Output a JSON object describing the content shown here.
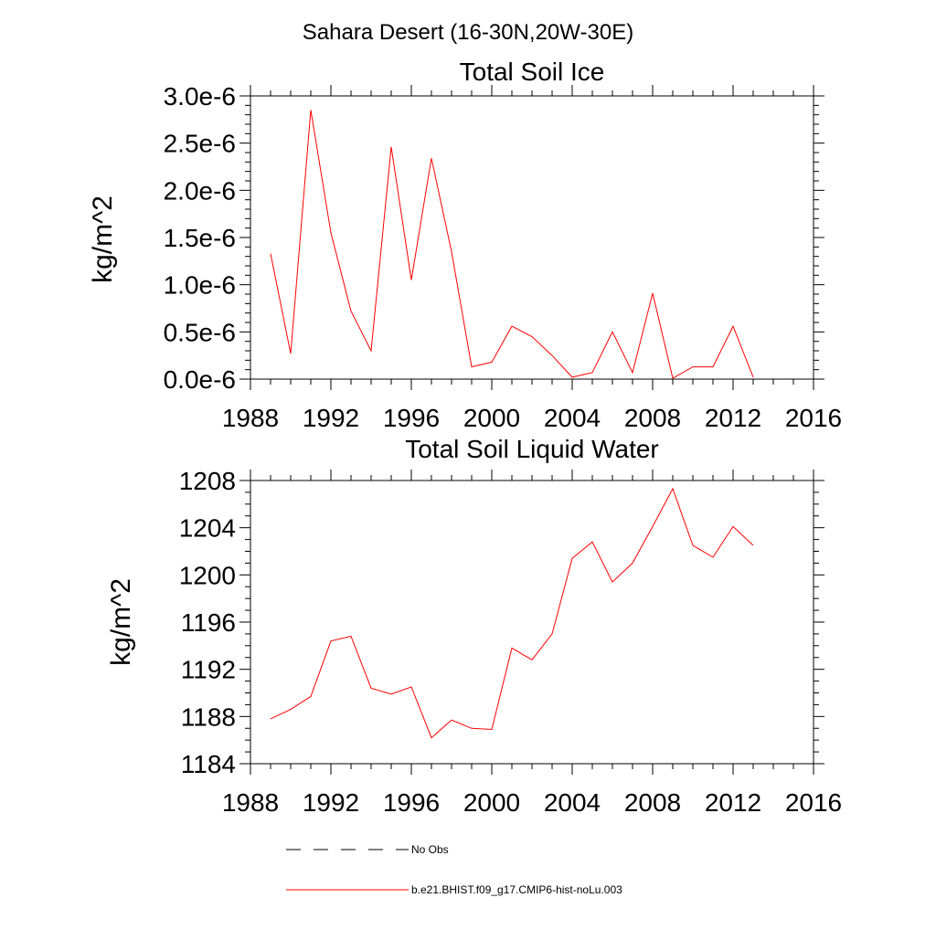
{
  "page_title": "Sahara Desert (16-30N,20W-30E)",
  "chart_data": [
    {
      "type": "line",
      "title": "Total Soil Ice",
      "xlabel": "",
      "ylabel": "kg/m^2",
      "xlim": [
        1988,
        2016
      ],
      "ylim": [
        0,
        3e-06
      ],
      "x_ticks": [
        1988,
        1992,
        1996,
        2000,
        2004,
        2008,
        2012,
        2016
      ],
      "x_tick_labels": [
        "1988",
        "1992",
        "1996",
        "2000",
        "2004",
        "2008",
        "2012",
        "2016"
      ],
      "y_ticks": [
        0,
        5e-07,
        1e-06,
        1.5e-06,
        2e-06,
        2.5e-06,
        3e-06
      ],
      "y_tick_labels": [
        "0.0e-6",
        "0.5e-6",
        "1.0e-6",
        "1.5e-6",
        "2.0e-6",
        "2.5e-6",
        "3.0e-6"
      ],
      "grid": false,
      "series": [
        {
          "name": "b.e21.BHIST.f09_g17.CMIP6-hist-noLu.003",
          "color": "#ff0000",
          "x": [
            1989,
            1990,
            1991,
            1992,
            1993,
            1994,
            1995,
            1996,
            1997,
            1998,
            1999,
            2000,
            2001,
            2002,
            2003,
            2004,
            2005,
            2006,
            2007,
            2008,
            2009,
            2010,
            2011,
            2012,
            2013
          ],
          "values": [
            1.33e-06,
            2.7e-07,
            2.85e-06,
            1.55e-06,
            7.2e-07,
            3e-07,
            2.46e-06,
            1.05e-06,
            2.34e-06,
            1.35e-06,
            1.3e-07,
            1.8e-07,
            5.6e-07,
            4.5e-07,
            2.5e-07,
            2e-08,
            7e-08,
            5e-07,
            7e-08,
            9.1e-07,
            1e-08,
            1.3e-07,
            1.3e-07,
            5.6e-07,
            2e-08
          ]
        }
      ]
    },
    {
      "type": "line",
      "title": "Total Soil Liquid Water",
      "xlabel": "",
      "ylabel": "kg/m^2",
      "xlim": [
        1988,
        2016
      ],
      "ylim": [
        1184,
        1208
      ],
      "x_ticks": [
        1988,
        1992,
        1996,
        2000,
        2004,
        2008,
        2012,
        2016
      ],
      "x_tick_labels": [
        "1988",
        "1992",
        "1996",
        "2000",
        "2004",
        "2008",
        "2012",
        "2016"
      ],
      "y_ticks": [
        1184,
        1188,
        1192,
        1196,
        1200,
        1204,
        1208
      ],
      "y_tick_labels": [
        "1184",
        "1188",
        "1192",
        "1196",
        "1200",
        "1204",
        "1208"
      ],
      "grid": false,
      "series": [
        {
          "name": "b.e21.BHIST.f09_g17.CMIP6-hist-noLu.003",
          "color": "#ff0000",
          "x": [
            1989,
            1990,
            1991,
            1992,
            1993,
            1994,
            1995,
            1996,
            1997,
            1998,
            1999,
            2000,
            2001,
            2002,
            2003,
            2004,
            2005,
            2006,
            2007,
            2008,
            2009,
            2010,
            2011,
            2012,
            2013
          ],
          "values": [
            1187.8,
            1188.6,
            1189.7,
            1194.4,
            1194.8,
            1190.4,
            1189.9,
            1190.5,
            1186.2,
            1187.7,
            1187.0,
            1186.9,
            1193.8,
            1192.8,
            1195.0,
            1201.4,
            1202.8,
            1199.4,
            1201.0,
            1204.1,
            1207.3,
            1202.5,
            1201.5,
            1204.1,
            1202.5
          ]
        }
      ]
    }
  ],
  "legend": {
    "placement": "bottom",
    "items": [
      {
        "label": "No Obs",
        "color": "#000000",
        "style": "dashed"
      },
      {
        "label": "b.e21.BHIST.f09_g17.CMIP6-hist-noLu.003",
        "color": "#ff0000",
        "style": "solid"
      }
    ]
  }
}
